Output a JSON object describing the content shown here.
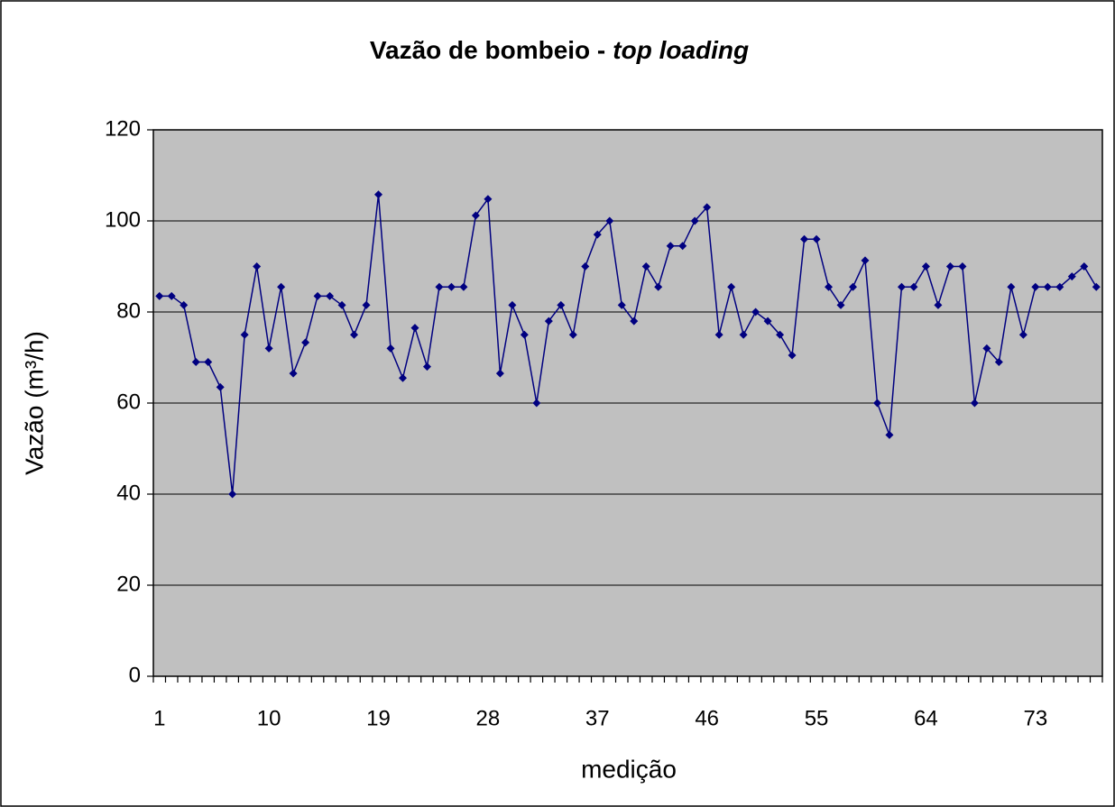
{
  "chart_data": {
    "type": "line",
    "title": [
      "Vazão de bombeio -",
      "top loading"
    ],
    "xlabel": "medição",
    "ylabel": "Vazão (m³/h)",
    "categories": [
      "1",
      null,
      null,
      null,
      null,
      null,
      null,
      null,
      null,
      "10",
      null,
      null,
      null,
      null,
      null,
      null,
      null,
      null,
      "19",
      null,
      null,
      null,
      null,
      null,
      null,
      null,
      null,
      "28",
      null,
      null,
      null,
      null,
      null,
      null,
      null,
      null,
      "37",
      null,
      null,
      null,
      null,
      null,
      null,
      null,
      null,
      "46",
      null,
      null,
      null,
      null,
      null,
      null,
      null,
      null,
      "55",
      null,
      null,
      null,
      null,
      null,
      null,
      null,
      null,
      "64",
      null,
      null,
      null,
      null,
      null,
      null,
      null,
      null,
      "73",
      null,
      null,
      null,
      null,
      null
    ],
    "series": [
      {
        "name": "Vazão",
        "color": "#000080",
        "values": [
          83.5,
          83.5,
          81.5,
          69,
          69,
          63.5,
          40,
          75,
          90,
          72,
          85.5,
          66.5,
          73.3,
          83.5,
          83.5,
          81.5,
          75,
          81.5,
          105.8,
          72,
          65.5,
          76.5,
          68,
          85.5,
          85.5,
          85.5,
          101.2,
          104.8,
          66.5,
          81.5,
          75,
          60,
          78,
          81.5,
          75,
          90,
          97,
          100,
          81.5,
          78,
          90,
          85.5,
          94.5,
          94.5,
          100,
          103,
          75,
          85.5,
          75,
          80,
          78,
          75,
          70.5,
          96,
          96,
          85.5,
          81.5,
          85.5,
          91.3,
          60,
          53,
          85.5,
          85.5,
          90,
          81.5,
          90,
          90,
          60,
          72,
          69,
          85.5,
          75,
          85.5,
          85.5,
          85.5,
          87.8,
          90,
          85.5
        ]
      }
    ],
    "ylim": [
      0,
      120
    ],
    "yticks": [
      0,
      20,
      40,
      60,
      80,
      100,
      120
    ],
    "grid": true,
    "plot_background": "#c0c0c0"
  }
}
